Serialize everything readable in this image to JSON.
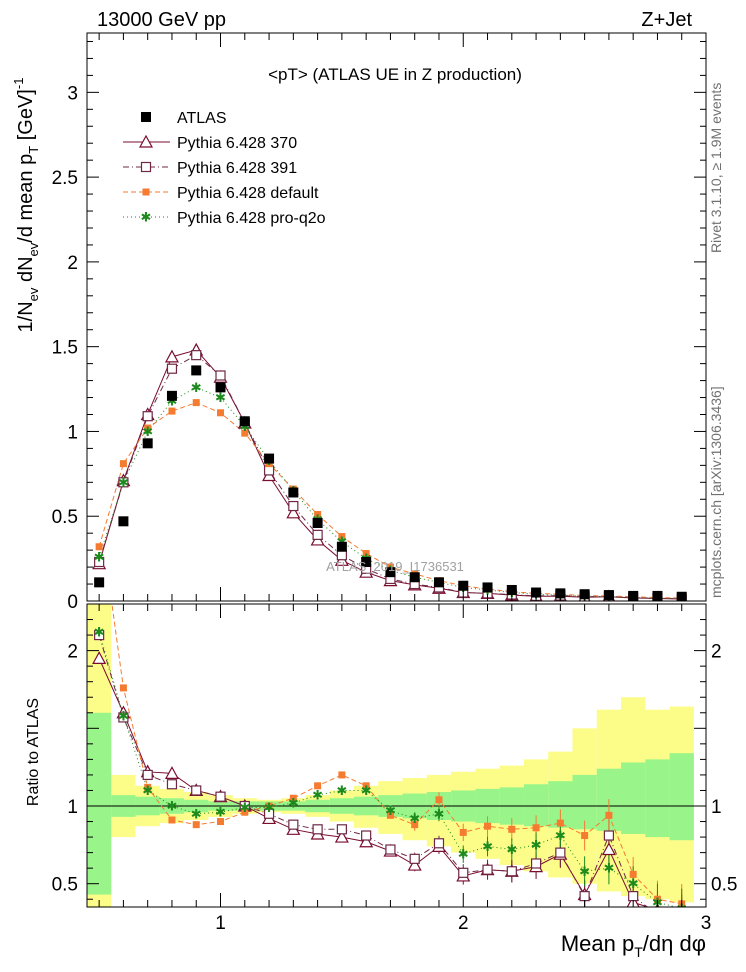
{
  "header": {
    "left": "13000 GeV pp",
    "right": "Z+Jet"
  },
  "side_text": {
    "rivet": "Rivet 3.1.10, ≥ 1.9M events",
    "mcplots": "mcplots.cern.ch [arXiv:1306.3436]"
  },
  "watermark": "ATLAS_2019_I1736531",
  "colors": {
    "band_inner": "#99f589",
    "band_outer": "#fcfc89",
    "s370": "#7a0c2e",
    "s391": "#6e2846",
    "sdef": "#f57b30",
    "sq2o": "#1c8a1c"
  },
  "chart_data": [
    {
      "type": "line",
      "title": "<pT> (ATLAS UE in Z production)",
      "ylabel": "1/N_ev dN_ev/d mean p_T [GeV]^-1",
      "ylim": [
        0,
        3.35
      ],
      "xlim": [
        0.45,
        3.0
      ],
      "yticks": [
        "0.5",
        "1",
        "1.5",
        "2",
        "2.5",
        "3"
      ],
      "ytick_zero": "0",
      "x": [
        0.5,
        0.6,
        0.7,
        0.8,
        0.9,
        1.0,
        1.1,
        1.2,
        1.3,
        1.4,
        1.5,
        1.6,
        1.7,
        1.8,
        1.9,
        2.0,
        2.1,
        2.2,
        2.3,
        2.4,
        2.5,
        2.6,
        2.7,
        2.8,
        2.9
      ],
      "legend": [
        "ATLAS",
        "Pythia 6.428 370",
        "Pythia 6.428 391",
        "Pythia 6.428 default",
        "Pythia 6.428 pro-q2o"
      ],
      "series": [
        {
          "name": "ATLAS",
          "values": [
            0.11,
            0.47,
            0.93,
            1.21,
            1.36,
            1.26,
            1.06,
            0.84,
            0.64,
            0.46,
            0.32,
            0.23,
            0.17,
            0.14,
            0.11,
            0.09,
            0.08,
            0.065,
            0.05,
            0.045,
            0.04,
            0.035,
            0.03,
            0.03,
            0.025
          ]
        },
        {
          "name": "Pythia 6.428 370",
          "values": [
            0.22,
            0.71,
            1.1,
            1.44,
            1.48,
            1.32,
            1.05,
            0.74,
            0.52,
            0.36,
            0.24,
            0.17,
            0.12,
            0.095,
            0.075,
            0.05,
            0.045,
            0.035,
            0.028,
            0.028,
            0.022,
            0.025,
            0.018,
            0.015,
            0.012
          ]
        },
        {
          "name": "Pythia 6.428 391",
          "values": [
            0.23,
            0.7,
            1.09,
            1.37,
            1.45,
            1.33,
            1.05,
            0.77,
            0.56,
            0.39,
            0.27,
            0.19,
            0.13,
            0.1,
            0.08,
            0.05,
            0.045,
            0.038,
            0.03,
            0.032,
            0.025,
            0.028,
            0.02,
            0.016,
            0.013
          ]
        },
        {
          "name": "Pythia 6.428 default",
          "values": [
            0.32,
            0.81,
            1.02,
            1.12,
            1.17,
            1.11,
            0.99,
            0.81,
            0.66,
            0.51,
            0.38,
            0.28,
            0.2,
            0.16,
            0.12,
            0.09,
            0.07,
            0.055,
            0.045,
            0.04,
            0.032,
            0.03,
            0.025,
            0.02,
            0.018
          ]
        },
        {
          "name": "Pythia 6.428 pro-q2o",
          "values": [
            0.26,
            0.7,
            1.0,
            1.18,
            1.26,
            1.2,
            1.03,
            0.83,
            0.65,
            0.48,
            0.35,
            0.25,
            0.18,
            0.14,
            0.11,
            0.08,
            0.065,
            0.05,
            0.04,
            0.035,
            0.028,
            0.025,
            0.02,
            0.017,
            0.015
          ]
        }
      ]
    },
    {
      "type": "line",
      "ylabel": "Ratio to ATLAS",
      "xlabel": "Mean p_T/dη dφ",
      "ylim": [
        0.35,
        2.3
      ],
      "xlim": [
        0.45,
        3.0
      ],
      "xticks": [
        "1",
        "2",
        "3"
      ],
      "yticks": [
        "0.5",
        "1",
        "2"
      ],
      "bands": {
        "x_edges": [
          0.45,
          0.55,
          0.65,
          0.75,
          0.85,
          0.95,
          1.05,
          1.15,
          1.25,
          1.35,
          1.45,
          1.55,
          1.65,
          1.75,
          1.85,
          1.95,
          2.05,
          2.15,
          2.25,
          2.35,
          2.45,
          2.55,
          2.65,
          2.75,
          2.85,
          2.95
        ],
        "inner_lo": [
          0.43,
          0.93,
          0.94,
          0.95,
          0.96,
          0.97,
          0.97,
          0.97,
          0.97,
          0.96,
          0.95,
          0.94,
          0.93,
          0.92,
          0.91,
          0.9,
          0.89,
          0.88,
          0.87,
          0.86,
          0.85,
          0.84,
          0.82,
          0.8,
          0.78
        ],
        "inner_hi": [
          1.6,
          1.07,
          1.06,
          1.05,
          1.04,
          1.03,
          1.03,
          1.03,
          1.03,
          1.04,
          1.05,
          1.06,
          1.07,
          1.08,
          1.09,
          1.1,
          1.11,
          1.12,
          1.14,
          1.16,
          1.2,
          1.24,
          1.28,
          1.3,
          1.34
        ],
        "outer_lo": [
          0.35,
          0.8,
          0.87,
          0.89,
          0.91,
          0.93,
          0.95,
          0.96,
          0.95,
          0.93,
          0.9,
          0.86,
          0.82,
          0.78,
          0.74,
          0.7,
          0.66,
          0.62,
          0.58,
          0.54,
          0.5,
          0.45,
          0.42,
          0.4,
          0.38
        ],
        "outer_hi": [
          2.3,
          1.2,
          1.13,
          1.11,
          1.09,
          1.07,
          1.05,
          1.04,
          1.05,
          1.07,
          1.1,
          1.13,
          1.16,
          1.18,
          1.2,
          1.22,
          1.24,
          1.26,
          1.3,
          1.35,
          1.5,
          1.62,
          1.7,
          1.62,
          1.64
        ]
      },
      "series": [
        {
          "name": "Pythia 6.428 370",
          "values": [
            1.95,
            1.6,
            1.22,
            1.21,
            1.1,
            1.06,
            1.0,
            0.92,
            0.85,
            0.82,
            0.8,
            0.77,
            0.71,
            0.62,
            0.74,
            0.55,
            0.59,
            0.58,
            0.61,
            0.69,
            0.43,
            0.72,
            0.38,
            0.33,
            0.3
          ]
        },
        {
          "name": "Pythia 6.428 391",
          "values": [
            2.1,
            1.57,
            1.2,
            1.14,
            1.1,
            1.06,
            1.0,
            0.95,
            0.88,
            0.85,
            0.85,
            0.81,
            0.72,
            0.66,
            0.76,
            0.57,
            0.59,
            0.58,
            0.63,
            0.7,
            0.42,
            0.81,
            0.42,
            0.3,
            0.28
          ]
        },
        {
          "name": "Pythia 6.428 default",
          "values": [
            2.9,
            1.76,
            1.12,
            0.91,
            0.88,
            0.9,
            0.96,
            1.0,
            1.05,
            1.13,
            1.2,
            1.13,
            0.94,
            0.88,
            1.04,
            0.83,
            0.87,
            0.85,
            0.86,
            0.89,
            0.81,
            0.94,
            0.56,
            0.4,
            0.37
          ]
        },
        {
          "name": "Pythia 6.428 pro-q2o",
          "values": [
            2.12,
            1.58,
            1.1,
            1.0,
            0.95,
            0.96,
            0.99,
            0.99,
            1.02,
            1.07,
            1.1,
            1.1,
            0.97,
            0.92,
            0.95,
            0.69,
            0.74,
            0.72,
            0.75,
            0.81,
            0.58,
            0.6,
            0.5,
            0.38,
            0.34
          ]
        }
      ]
    }
  ]
}
